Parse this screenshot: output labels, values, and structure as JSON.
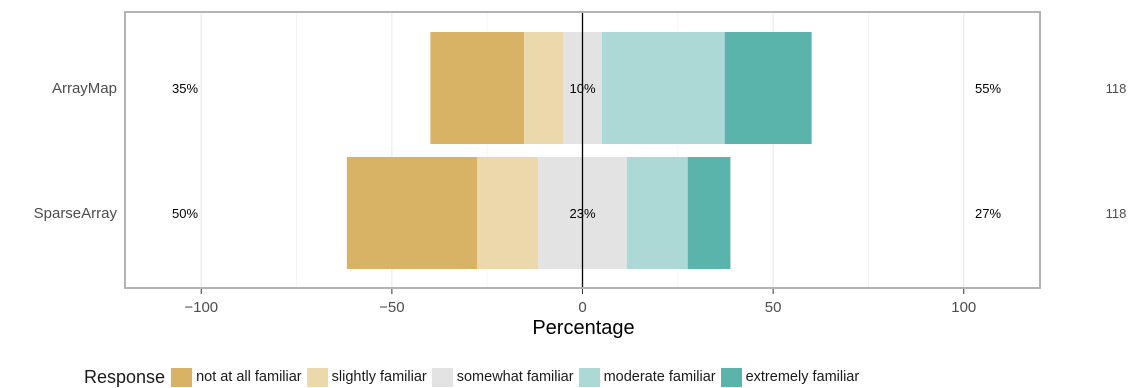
{
  "chart_data": {
    "type": "bar",
    "orientation": "horizontal",
    "stacked": "diverging",
    "title": "",
    "xlabel": "Percentage",
    "ylabel": "",
    "xlim": [
      -120,
      120
    ],
    "xticks": [
      -100,
      -50,
      0,
      50,
      100
    ],
    "xtick_labels": [
      "−100",
      "−50",
      "0",
      "50",
      "100"
    ],
    "grid": true,
    "legend_position": "bottom",
    "legend_title": "Response",
    "categories": [
      "ArrayMap",
      "SparseArray"
    ],
    "series": [
      {
        "name": "not at all familiar",
        "color": "#D8B365",
        "values": [
          24.6,
          34.2
        ]
      },
      {
        "name": "slightly familiar",
        "color": "#EBD9AC",
        "values": [
          10.2,
          16.0
        ]
      },
      {
        "name": "somewhat familiar",
        "color": "#E3E3E3",
        "values": [
          10.2,
          23.2
        ]
      },
      {
        "name": "moderate familiar",
        "color": "#ACD9D5",
        "values": [
          32.2,
          16.0
        ]
      },
      {
        "name": "extremely familiar",
        "color": "#5AB4AC",
        "values": [
          22.8,
          11.2
        ]
      }
    ],
    "left_percent_labels": [
      "35%",
      "50%"
    ],
    "center_percent_labels": [
      "10%",
      "23%"
    ],
    "right_percent_labels": [
      "55%",
      "27%"
    ],
    "count_labels": [
      "118",
      "118"
    ]
  }
}
